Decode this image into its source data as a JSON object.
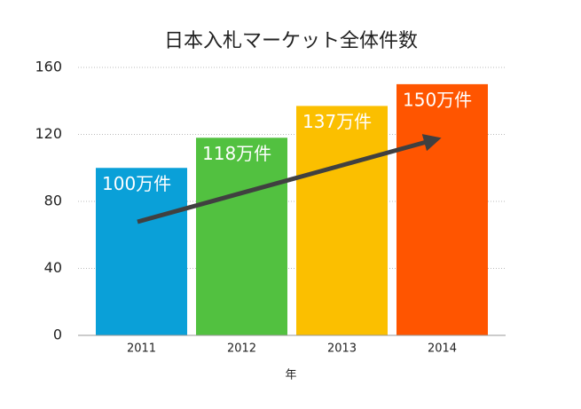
{
  "chart_data": {
    "type": "bar",
    "title": "日本入札マーケット全体件数",
    "x_label": "年",
    "categories": [
      "2011",
      "2012",
      "2013",
      "2014"
    ],
    "values": [
      100,
      118,
      137,
      150
    ],
    "value_labels": [
      "100万件",
      "118万件",
      "137万件",
      "150万件"
    ],
    "colors": [
      "#0aa0d8",
      "#52c140",
      "#fbbf00",
      "#ff5500"
    ],
    "ylim": [
      0,
      160
    ],
    "yticks": [
      0,
      40,
      80,
      120,
      160
    ],
    "grid": true
  }
}
